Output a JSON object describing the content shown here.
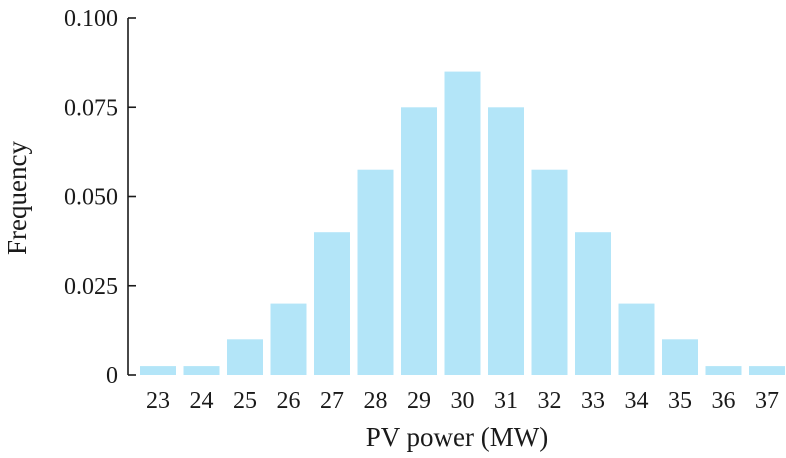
{
  "chart_data": {
    "type": "bar",
    "title": "",
    "xlabel": "PV power (MW)",
    "ylabel": "Frequency",
    "categories": [
      "23",
      "24",
      "25",
      "26",
      "27",
      "28",
      "29",
      "30",
      "31",
      "32",
      "33",
      "34",
      "35",
      "36",
      "37"
    ],
    "values": [
      0.0025,
      0.0025,
      0.01,
      0.02,
      0.04,
      0.0575,
      0.075,
      0.085,
      0.075,
      0.0575,
      0.04,
      0.02,
      0.01,
      0.0025,
      0.0025
    ],
    "ylim": [
      0,
      0.1
    ],
    "yticks": [
      "0",
      "0.025",
      "0.050",
      "0.075",
      "0.100"
    ],
    "bar_color": "#b3e5f8",
    "grid": false
  }
}
